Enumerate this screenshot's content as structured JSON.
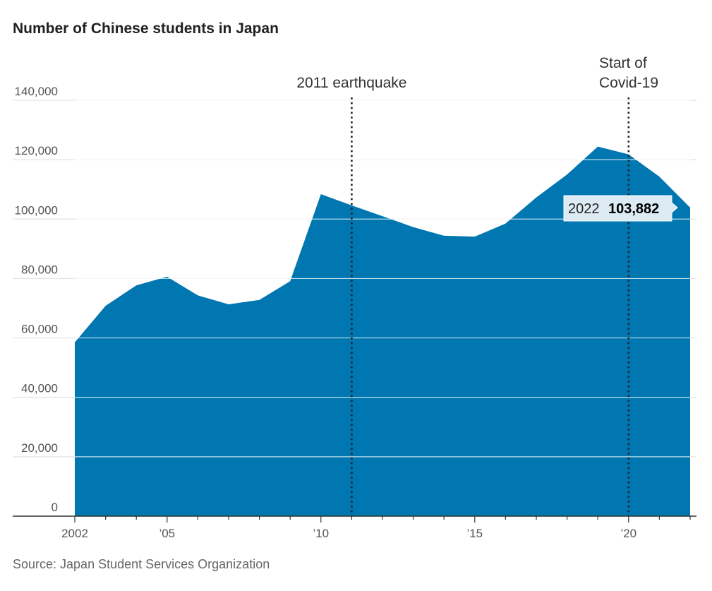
{
  "chart_data": {
    "type": "area",
    "title": "Number of Chinese students in Japan",
    "source": "Source: Japan Student Services Organization",
    "x": [
      2002,
      2003,
      2004,
      2005,
      2006,
      2007,
      2008,
      2009,
      2010,
      2011,
      2012,
      2013,
      2014,
      2015,
      2016,
      2017,
      2018,
      2019,
      2020,
      2021,
      2022
    ],
    "series": [
      {
        "values": [
          58500,
          70800,
          77700,
          80600,
          74300,
          71300,
          72800,
          79100,
          108400,
          104600,
          101000,
          97300,
          94400,
          94100,
          98500,
          107300,
          115000,
          124400,
          121800,
          114300,
          103882
        ]
      }
    ],
    "xlim": [
      2002,
      2022
    ],
    "ylim": [
      0,
      140000
    ],
    "yticks": [
      0,
      20000,
      40000,
      60000,
      80000,
      100000,
      120000,
      140000
    ],
    "ytick_labels": [
      "0",
      "20,000",
      "40,000",
      "60,000",
      "80,000",
      "100,000",
      "120,000",
      "140,000"
    ],
    "xticks": [
      2002,
      2005,
      2010,
      2015,
      2020
    ],
    "xtick_labels": [
      "2002",
      "’05",
      "’10",
      "’15",
      "’20"
    ],
    "grid": true,
    "annotations": [
      {
        "x": 2011,
        "lines": [
          "2011 earthquake"
        ]
      },
      {
        "x": 2020,
        "lines": [
          "Start of",
          "Covid-19"
        ]
      }
    ],
    "callout": {
      "year": "2022",
      "value": "103,882"
    },
    "colors": {
      "area": "#0077b0",
      "grid": "#e3e3e3",
      "axis": "#333333",
      "callout_bg": "#dceaf4"
    }
  }
}
